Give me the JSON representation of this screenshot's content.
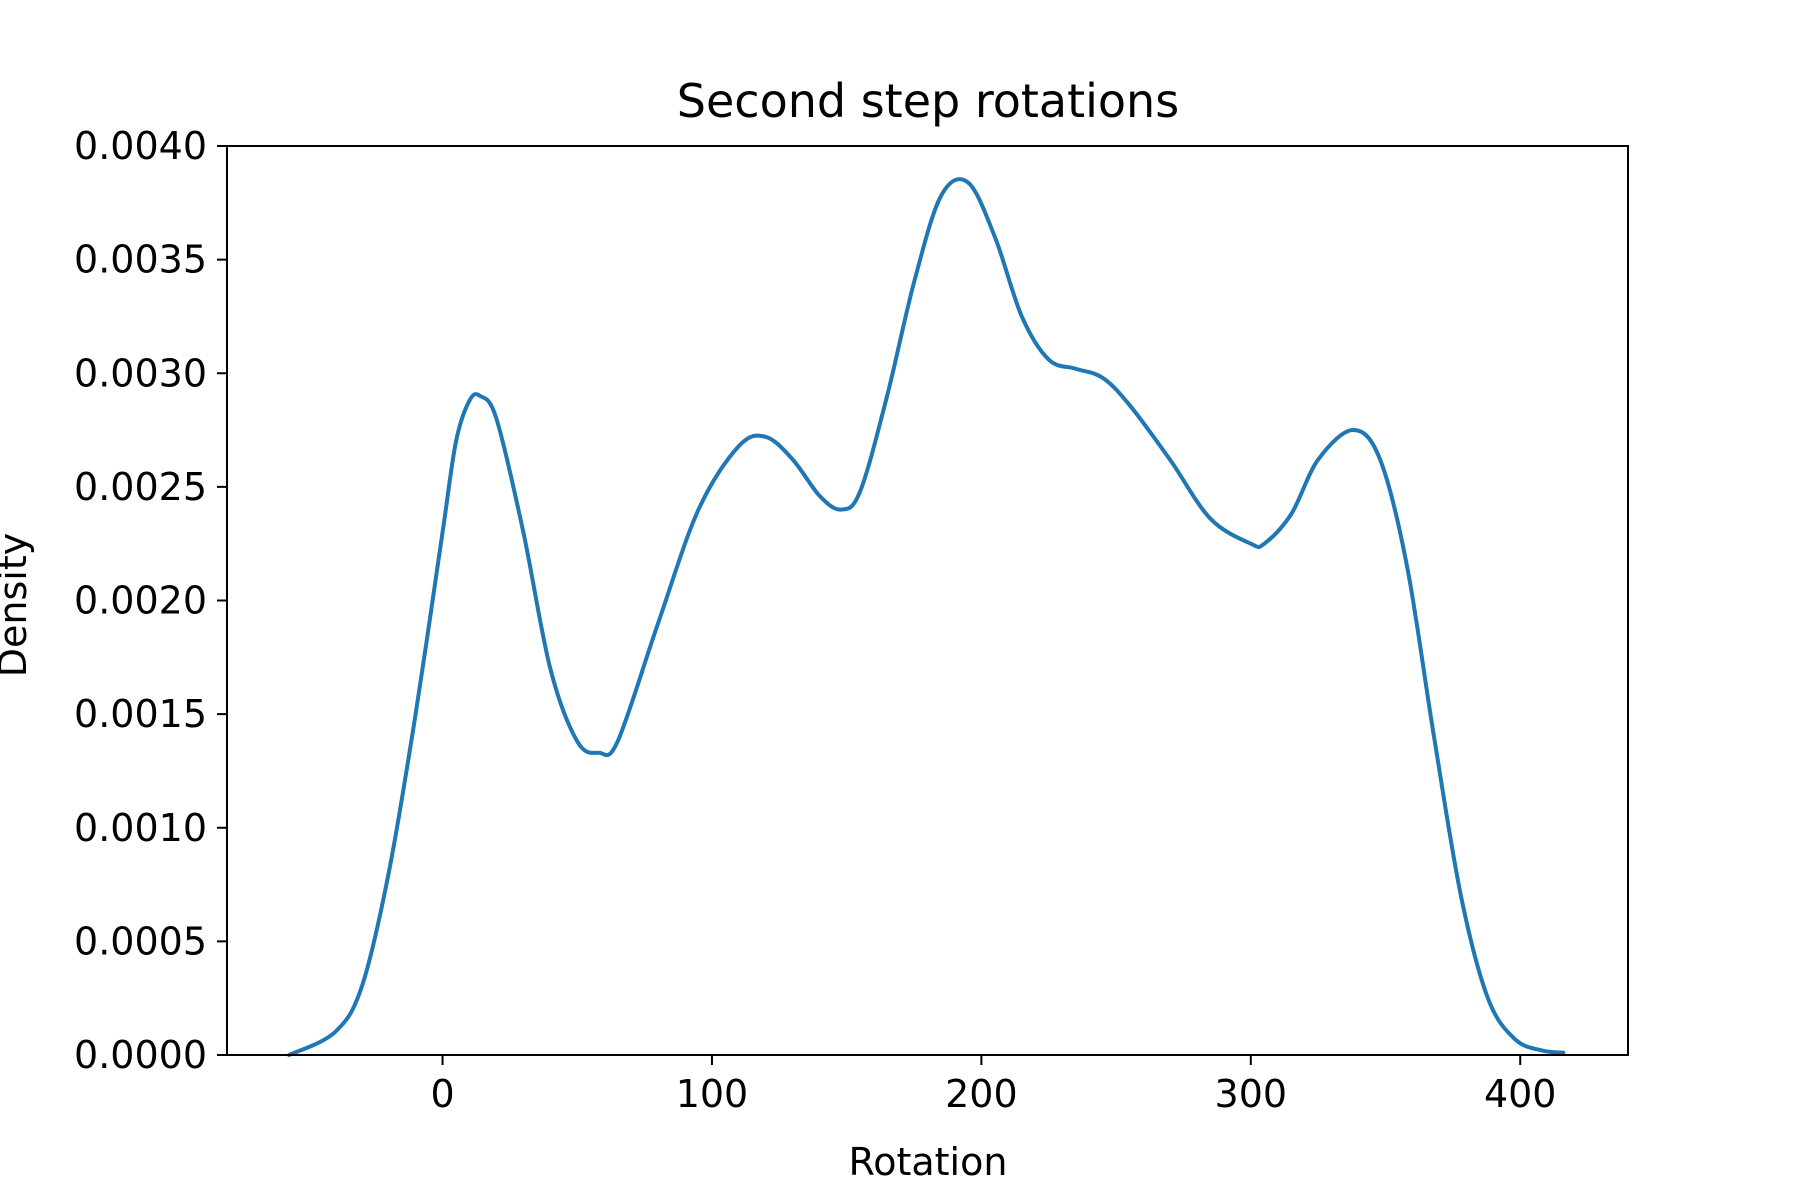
{
  "chart_data": {
    "type": "line",
    "title": "Second step rotations",
    "xlabel": "Rotation",
    "ylabel": "Density",
    "xlim": [
      -80,
      440
    ],
    "ylim": [
      0,
      0.004
    ],
    "xticks": [
      0,
      100,
      200,
      300,
      400
    ],
    "xtick_labels": [
      "0",
      "100",
      "200",
      "300",
      "400"
    ],
    "yticks": [
      0,
      0.0005,
      0.001,
      0.0015,
      0.002,
      0.0025,
      0.003,
      0.0035,
      0.004
    ],
    "ytick_labels": [
      "0.0000",
      "0.0005",
      "0.0010",
      "0.0015",
      "0.0020",
      "0.0025",
      "0.0030",
      "0.0035",
      "0.0040"
    ],
    "grid": false,
    "legend": "none",
    "series": [
      {
        "color": "#1f77b4",
        "x": [
          -57,
          -40,
          -30,
          -20,
          -10,
          0,
          5,
          10,
          14,
          20,
          30,
          40,
          50,
          58,
          65,
          80,
          95,
          110,
          120,
          130,
          140,
          148,
          155,
          165,
          175,
          185,
          195,
          205,
          215,
          225,
          235,
          245,
          255,
          270,
          285,
          300,
          305,
          315,
          325,
          338,
          348,
          358,
          368,
          378,
          388,
          398,
          408,
          416
        ],
        "y": [
          0.0,
          0.0001,
          0.0003,
          0.0008,
          0.0015,
          0.0023,
          0.0027,
          0.00288,
          0.0029,
          0.0028,
          0.0023,
          0.0017,
          0.00138,
          0.00133,
          0.00138,
          0.0019,
          0.0024,
          0.00268,
          0.00272,
          0.00262,
          0.00246,
          0.0024,
          0.00248,
          0.0029,
          0.0034,
          0.00378,
          0.00384,
          0.0036,
          0.00325,
          0.00306,
          0.00302,
          0.00298,
          0.00286,
          0.00262,
          0.00236,
          0.00225,
          0.00225,
          0.00238,
          0.00262,
          0.00275,
          0.00262,
          0.00215,
          0.0014,
          0.0007,
          0.00025,
          7e-05,
          2e-05,
          1e-05
        ]
      }
    ]
  }
}
